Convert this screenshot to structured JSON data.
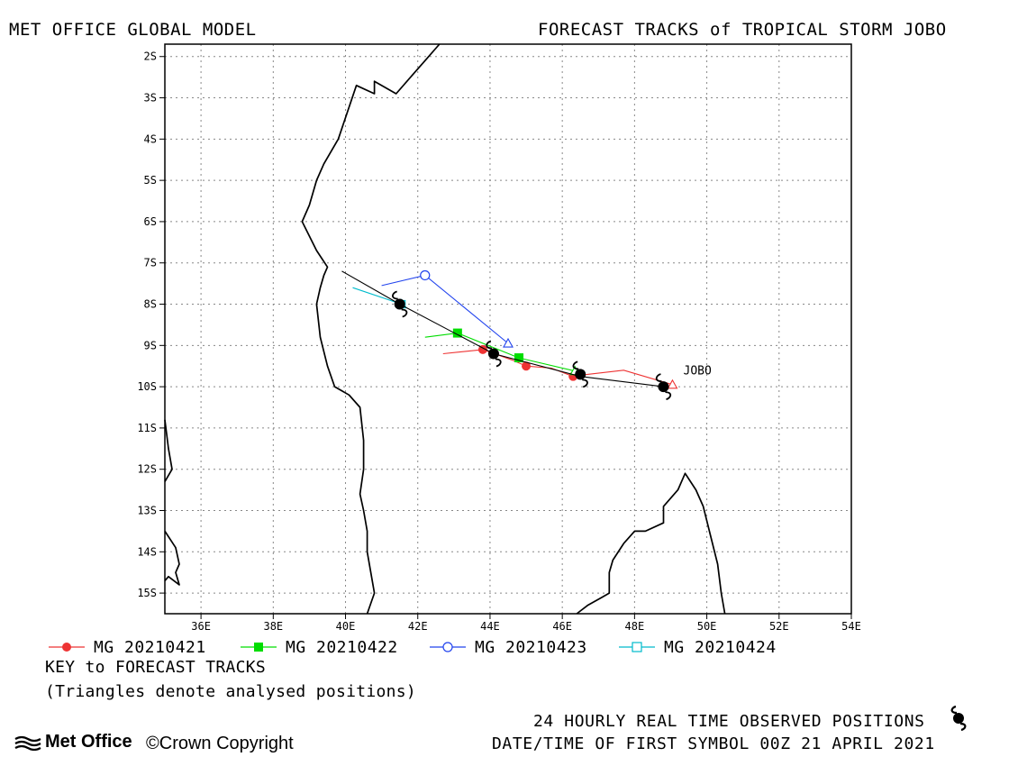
{
  "header": {
    "left_title": "MET OFFICE GLOBAL MODEL",
    "right_title": "FORECAST TRACKS of TROPICAL STORM JOBO"
  },
  "chart_data": {
    "type": "line",
    "xlim": [
      35,
      54
    ],
    "ylim": [
      -15.5,
      -1.7
    ],
    "grid": true,
    "x_ticks": [
      36,
      38,
      40,
      42,
      44,
      46,
      48,
      50,
      52,
      54
    ],
    "x_tick_labels": [
      "36E",
      "38E",
      "40E",
      "42E",
      "44E",
      "46E",
      "48E",
      "50E",
      "52E",
      "54E"
    ],
    "y_ticks": [
      -2,
      -3,
      -4,
      -5,
      -6,
      -7,
      -8,
      -9,
      -10,
      -11,
      -12,
      -13,
      -14,
      -15
    ],
    "y_tick_labels": [
      "2S",
      "3S",
      "4S",
      "5S",
      "6S",
      "7S",
      "8S",
      "9S",
      "10S",
      "11S",
      "12S",
      "13S",
      "14S",
      "15S"
    ],
    "storm_label": "JOBO",
    "storm_label_position": [
      49.35,
      -9.7
    ],
    "observed_track": {
      "points": [
        [
          48.8,
          -10.0
        ],
        [
          46.5,
          -9.75
        ],
        [
          44.1,
          -9.2
        ],
        [
          41.5,
          -8.0
        ],
        [
          39.9,
          -7.2
        ]
      ],
      "observed_markers": [
        [
          48.8,
          -10.0
        ],
        [
          46.5,
          -9.7
        ],
        [
          44.1,
          -9.2
        ],
        [
          41.5,
          -8.0
        ]
      ],
      "color": "#000000"
    },
    "series": [
      {
        "name": "MG 20210421",
        "marker": "circle-filled",
        "color": "#ee3333",
        "analysed": [
          49.05,
          -9.95
        ],
        "line": [
          [
            49.05,
            -9.95
          ],
          [
            47.7,
            -9.6
          ],
          [
            46.7,
            -9.7
          ],
          [
            46.3,
            -9.75
          ],
          [
            45.7,
            -9.55
          ],
          [
            45.0,
            -9.5
          ],
          [
            44.6,
            -9.35
          ],
          [
            43.8,
            -9.1
          ],
          [
            42.7,
            -9.2
          ]
        ],
        "markers": [
          [
            46.3,
            -9.75
          ],
          [
            45.0,
            -9.5
          ],
          [
            43.8,
            -9.1
          ]
        ]
      },
      {
        "name": "MG 20210422",
        "marker": "square-filled",
        "color": "#00dd00",
        "analysed": [
          46.35,
          -9.62
        ],
        "line": [
          [
            46.35,
            -9.62
          ],
          [
            44.8,
            -9.3
          ],
          [
            43.1,
            -8.7
          ],
          [
            42.2,
            -8.8
          ]
        ],
        "markers": [
          [
            44.8,
            -9.3
          ],
          [
            43.1,
            -8.7
          ]
        ]
      },
      {
        "name": "MG 20210423",
        "marker": "circle-open",
        "color": "#2244ee",
        "analysed": [
          44.5,
          -8.95
        ],
        "line": [
          [
            44.5,
            -8.95
          ],
          [
            42.2,
            -7.3
          ],
          [
            41.0,
            -7.55
          ]
        ],
        "markers": [
          [
            42.2,
            -7.3
          ]
        ]
      },
      {
        "name": "MG 20210424",
        "marker": "square-open",
        "color": "#00bbcc",
        "analysed": [
          41.55,
          -8.0
        ],
        "line": [
          [
            41.55,
            -8.0
          ],
          [
            40.2,
            -7.6
          ]
        ],
        "markers": [
          [
            41.55,
            -8.0
          ]
        ]
      }
    ]
  },
  "coastlines": [
    [
      [
        42.6,
        -1.7
      ],
      [
        42.2,
        -2.1
      ],
      [
        41.9,
        -2.4
      ],
      [
        41.4,
        -2.9
      ],
      [
        40.8,
        -2.6
      ],
      [
        40.8,
        -2.9
      ],
      [
        40.3,
        -2.7
      ],
      [
        39.8,
        -4.0
      ],
      [
        39.4,
        -4.6
      ],
      [
        39.2,
        -5.0
      ],
      [
        39.0,
        -5.6
      ],
      [
        38.8,
        -6.0
      ],
      [
        39.2,
        -6.7
      ],
      [
        39.5,
        -7.1
      ],
      [
        39.4,
        -7.3
      ],
      [
        39.3,
        -7.6
      ],
      [
        39.2,
        -8.0
      ],
      [
        39.3,
        -8.8
      ],
      [
        39.5,
        -9.5
      ],
      [
        39.7,
        -10.0
      ],
      [
        40.1,
        -10.2
      ],
      [
        40.4,
        -10.5
      ],
      [
        40.5,
        -11.3
      ],
      [
        40.5,
        -12.0
      ],
      [
        40.4,
        -12.6
      ],
      [
        40.5,
        -13.0
      ],
      [
        40.6,
        -13.5
      ],
      [
        40.6,
        -14.0
      ],
      [
        40.7,
        -14.5
      ],
      [
        40.8,
        -15.0
      ],
      [
        40.6,
        -15.5
      ]
    ],
    [
      [
        46.4,
        -15.5
      ],
      [
        46.7,
        -15.3
      ],
      [
        47.1,
        -15.1
      ],
      [
        47.3,
        -15.0
      ],
      [
        47.3,
        -14.5
      ],
      [
        47.4,
        -14.2
      ],
      [
        47.7,
        -13.8
      ],
      [
        48.0,
        -13.5
      ],
      [
        48.3,
        -13.5
      ],
      [
        48.8,
        -13.3
      ],
      [
        48.8,
        -12.9
      ],
      [
        49.2,
        -12.5
      ],
      [
        49.4,
        -12.1
      ],
      [
        49.7,
        -12.5
      ],
      [
        49.9,
        -12.9
      ],
      [
        50.1,
        -13.6
      ],
      [
        50.3,
        -14.3
      ],
      [
        50.4,
        -15.0
      ],
      [
        50.5,
        -15.5
      ]
    ],
    [
      [
        35.0,
        -10.8
      ],
      [
        35.1,
        -11.5
      ],
      [
        35.2,
        -12.0
      ],
      [
        35.0,
        -12.3
      ]
    ],
    [
      [
        35.0,
        -13.5
      ],
      [
        35.3,
        -13.9
      ],
      [
        35.4,
        -14.3
      ],
      [
        35.3,
        -14.5
      ],
      [
        35.4,
        -14.8
      ],
      [
        35.1,
        -14.6
      ],
      [
        35.0,
        -14.7
      ]
    ]
  ],
  "legend": {
    "items": [
      {
        "label": "MG 20210421",
        "color": "#ee3333",
        "marker": "circle-filled"
      },
      {
        "label": "MG 20210422",
        "color": "#00dd00",
        "marker": "square-filled"
      },
      {
        "label": "MG 20210423",
        "color": "#2244ee",
        "marker": "circle-open"
      },
      {
        "label": "MG 20210424",
        "color": "#00bbcc",
        "marker": "square-open"
      }
    ]
  },
  "key": {
    "title": "KEY to FORECAST TRACKS",
    "note": "(Triangles denote analysed positions)"
  },
  "footer": {
    "observed_positions": "24 HOURLY REAL TIME OBSERVED POSITIONS",
    "first_symbol": "DATE/TIME OF FIRST SYMBOL 00Z 21 APRIL 2021",
    "logo_text": "Met Office",
    "copyright": "Crown Copyright",
    "copyright_symbol": "©",
    "observed_icon": "tropical-storm-icon"
  }
}
